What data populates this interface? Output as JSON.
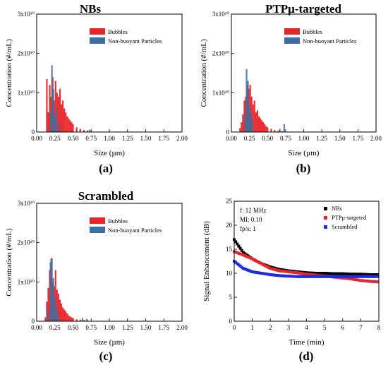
{
  "colors": {
    "bubbles": "#e8262a",
    "particles": "#3a6ea5",
    "nbs": "#000000",
    "ptp": "#e8262a",
    "scrambled": "#1f2be0"
  },
  "chart_data": [
    {
      "id": "a",
      "type": "bar",
      "title": "NBs",
      "panel_label": "(a)",
      "xlabel": "Size (µm)",
      "ylabel": "Concentration (#/mL)",
      "xlim": [
        0,
        2
      ],
      "ylim": [
        0,
        30000000000.0
      ],
      "xticks": [
        "0.00",
        "0.25",
        "0.50",
        "0.75",
        "1.00",
        "1.25",
        "1.50",
        "1.75",
        "2.00"
      ],
      "yticks": [
        "0",
        "1x10¹⁰",
        "2x10¹⁰",
        "3x10¹⁰"
      ],
      "legend": [
        "Bubbles",
        "Non-buoyant Particles"
      ],
      "series": [
        {
          "name": "Bubbles",
          "x": [
            0.14,
            0.16,
            0.18,
            0.2,
            0.22,
            0.24,
            0.26,
            0.28,
            0.3,
            0.32,
            0.34,
            0.36,
            0.38,
            0.4,
            0.42,
            0.44,
            0.46,
            0.48,
            0.5,
            0.55,
            0.6,
            0.65,
            0.7,
            0.75
          ],
          "values": [
            13500000000.0,
            5000000000.0,
            12000000000.0,
            9000000000.0,
            14000000000.0,
            8000000000.0,
            13000000000.0,
            10000000000.0,
            9000000000.0,
            11000000000.0,
            7000000000.0,
            8000000000.0,
            6000000000.0,
            5000000000.0,
            4000000000.0,
            3500000000.0,
            3000000000.0,
            2500000000.0,
            2000000000.0,
            1200000000.0,
            800000000.0,
            500000000.0,
            400000000.0,
            200000000.0
          ]
        },
        {
          "name": "Non-buoyant Particles",
          "x": [
            0.19,
            0.21,
            0.23,
            0.25,
            0.27,
            0.31,
            0.65,
            0.73
          ],
          "values": [
            5000000000.0,
            17000000000.0,
            11000000000.0,
            4000000000.0,
            6000000000.0,
            2000000000.0,
            500000000.0,
            600000000.0
          ]
        }
      ]
    },
    {
      "id": "b",
      "type": "bar",
      "title": "PTPμ-targeted",
      "panel_label": "(b)",
      "xlabel": "Size (µm)",
      "ylabel": "Concentration (#/mL)",
      "xlim": [
        0,
        2
      ],
      "ylim": [
        0,
        30000000000.0
      ],
      "xticks": [
        "0.00",
        "0.25",
        "0.50",
        "0.75",
        "1.00",
        "1.25",
        "1.50",
        "1.75",
        "2.00"
      ],
      "yticks": [
        "0",
        "1x10¹⁰",
        "2x10¹⁰",
        "3x10¹⁰"
      ],
      "legend": [
        "Bubbles",
        "Non-buoyant Particles"
      ],
      "series": [
        {
          "name": "Bubbles",
          "x": [
            0.12,
            0.14,
            0.16,
            0.18,
            0.2,
            0.22,
            0.24,
            0.26,
            0.28,
            0.3,
            0.32,
            0.34,
            0.36,
            0.38,
            0.4,
            0.42,
            0.44,
            0.46,
            0.48,
            0.5,
            0.55,
            0.6,
            0.65,
            0.7
          ],
          "values": [
            1000000000.0,
            2500000000.0,
            4500000000.0,
            8000000000.0,
            9000000000.0,
            12000000000.0,
            11000000000.0,
            12000000000.0,
            9000000000.0,
            7000000000.0,
            8000000000.0,
            5000000000.0,
            5500000000.0,
            4000000000.0,
            3500000000.0,
            3000000000.0,
            2500000000.0,
            2000000000.0,
            1500000000.0,
            1200000000.0,
            800000000.0,
            500000000.0,
            300000000.0,
            200000000.0
          ]
        },
        {
          "name": "Non-buoyant Particles",
          "x": [
            0.19,
            0.21,
            0.23,
            0.25,
            0.27,
            0.29,
            0.67,
            0.73
          ],
          "values": [
            4000000000.0,
            16000000000.0,
            13000000000.0,
            7000000000.0,
            5000000000.0,
            3000000000.0,
            800000000.0,
            2000000000.0
          ]
        }
      ]
    },
    {
      "id": "c",
      "type": "bar",
      "title": "Scrambled",
      "panel_label": "(c)",
      "xlabel": "Size (µm)",
      "ylabel": "Concentration (#/mL)",
      "xlim": [
        0,
        2
      ],
      "ylim": [
        0,
        30000000000.0
      ],
      "xticks": [
        "0.00",
        "0.25",
        "0.50",
        "0.75",
        "1.00",
        "1.25",
        "1.50",
        "1.75",
        "2.00"
      ],
      "yticks": [
        "0",
        "1x10¹⁰",
        "2x10¹⁰",
        "3x10¹⁰"
      ],
      "legend": [
        "Bubbles",
        "Non-buoyant Particles"
      ],
      "series": [
        {
          "name": "Bubbles",
          "x": [
            0.12,
            0.14,
            0.16,
            0.18,
            0.2,
            0.22,
            0.24,
            0.26,
            0.28,
            0.3,
            0.32,
            0.34,
            0.36,
            0.38,
            0.4,
            0.42,
            0.44,
            0.46,
            0.48,
            0.5,
            0.55,
            0.6,
            0.65,
            0.7
          ],
          "values": [
            1000000000.0,
            5000000000.0,
            8500000000.0,
            13000000000.0,
            16000000000.0,
            10000000000.0,
            9000000000.0,
            13000000000.0,
            8000000000.0,
            7000000000.0,
            5500000000.0,
            4500000000.0,
            3500000000.0,
            3000000000.0,
            2500000000.0,
            2000000000.0,
            1500000000.0,
            1200000000.0,
            1000000000.0,
            800000000.0,
            500000000.0,
            400000000.0,
            300000000.0,
            200000000.0
          ]
        },
        {
          "name": "Non-buoyant Particles",
          "x": [
            0.15,
            0.19,
            0.21,
            0.23,
            0.25,
            0.27,
            0.29,
            0.63,
            0.69
          ],
          "values": [
            3000000000.0,
            15000000000.0,
            16000000000.0,
            11000000000.0,
            6000000000.0,
            4000000000.0,
            2000000000.0,
            800000000.0,
            600000000.0
          ]
        }
      ]
    },
    {
      "id": "d",
      "type": "scatter",
      "title": "",
      "panel_label": "(d)",
      "xlabel": "Time (min)",
      "ylabel": "Signal Enhancement (dB)",
      "xlim": [
        0,
        8
      ],
      "ylim": [
        0,
        25
      ],
      "xticks": [
        "0",
        "1",
        "2",
        "3",
        "4",
        "5",
        "6",
        "7",
        "8"
      ],
      "yticks": [
        "0",
        "5",
        "10",
        "15",
        "20",
        "25"
      ],
      "annotations": [
        "f: 12 MHz",
        "MI: 0.10",
        "fp/s: 1"
      ],
      "legend": [
        "NBs",
        "PTPμ-targeted",
        "Scrambled"
      ],
      "series": [
        {
          "name": "NBs",
          "x": [
            0,
            0.5,
            1,
            1.5,
            2,
            2.5,
            3,
            3.5,
            4,
            4.5,
            5,
            5.5,
            6,
            6.5,
            7,
            7.5,
            8
          ],
          "values": [
            17,
            14.3,
            13,
            12,
            11.3,
            10.8,
            10.5,
            10.3,
            10.1,
            10,
            10,
            9.9,
            9.9,
            9.8,
            9.8,
            9.7,
            9.7
          ]
        },
        {
          "name": "PTPμ-targeted",
          "x": [
            0,
            0.5,
            1,
            1.5,
            2,
            2.5,
            3,
            3.5,
            4,
            4.5,
            5,
            5.5,
            6,
            6.5,
            7,
            7.5,
            8
          ],
          "values": [
            14.5,
            13.8,
            13,
            12,
            11,
            10.5,
            10.3,
            10.1,
            9.8,
            9.6,
            9.4,
            9.2,
            9,
            8.8,
            8.5,
            8.3,
            8.2
          ]
        },
        {
          "name": "Scrambled",
          "x": [
            0,
            0.5,
            1,
            1.5,
            2,
            2.5,
            3,
            3.5,
            4,
            4.5,
            5,
            5.5,
            6,
            6.5,
            7,
            7.5,
            8
          ],
          "values": [
            12.5,
            11,
            10.3,
            10,
            9.7,
            9.5,
            9.4,
            9.3,
            9.3,
            9.3,
            9.3,
            9.3,
            9.3,
            9.3,
            9.3,
            9.3,
            9.3
          ]
        }
      ]
    }
  ]
}
